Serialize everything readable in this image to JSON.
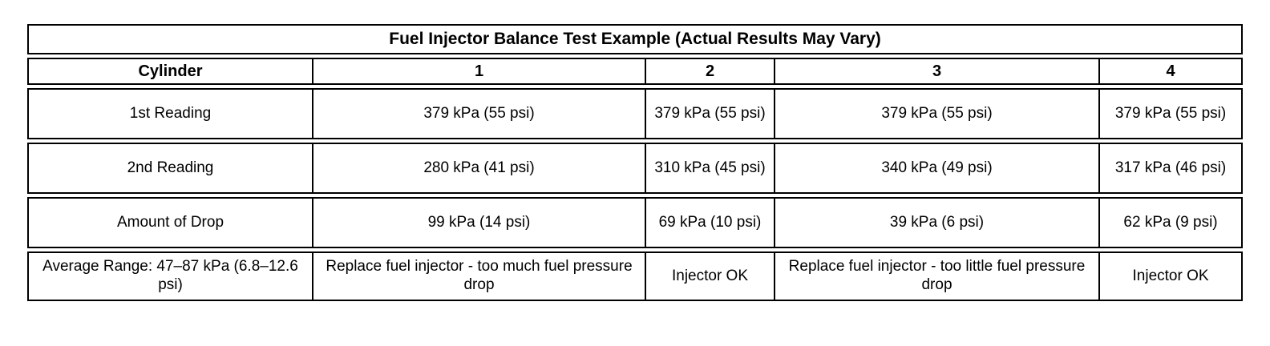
{
  "table": {
    "title": "Fuel Injector Balance Test Example (Actual Results May Vary)",
    "columns": [
      "Cylinder",
      "1",
      "2",
      "3",
      "4"
    ],
    "rows": [
      {
        "label": "1st Reading",
        "values": [
          "379 kPa (55 psi)",
          "379 kPa (55 psi)",
          "379 kPa (55 psi)",
          "379 kPa (55 psi)"
        ]
      },
      {
        "label": "2nd Reading",
        "values": [
          "280 kPa (41 psi)",
          "310 kPa (45 psi)",
          "340 kPa (49 psi)",
          "317 kPa (46 psi)"
        ]
      },
      {
        "label": "Amount of Drop",
        "values": [
          "99 kPa (14 psi)",
          "69 kPa (10 psi)",
          "39 kPa (6 psi)",
          "62 kPa (9 psi)"
        ]
      },
      {
        "label": "Average Range: 47–87 kPa (6.8–12.6 psi)",
        "values": [
          "Replace fuel injector - too much fuel pressure drop",
          "Injector OK",
          "Replace fuel injector - too little fuel pressure drop",
          "Injector OK"
        ]
      }
    ]
  }
}
